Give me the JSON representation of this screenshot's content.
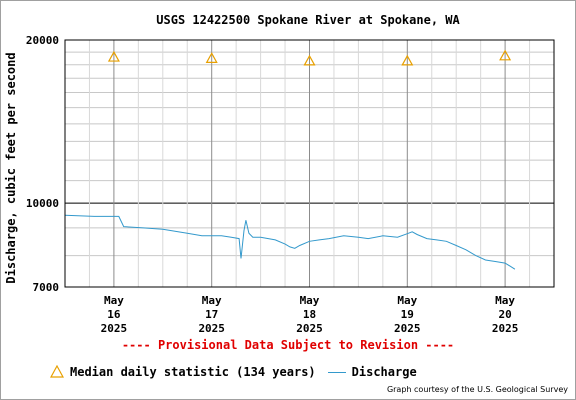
{
  "chart_data": {
    "type": "line",
    "title": "USGS 12422500 Spokane River at Spokane, WA",
    "ylabel": "Discharge, cubic feet per second",
    "y_scale": "log",
    "ylim": [
      7000,
      20000
    ],
    "y_ticks": [
      {
        "value": 7000,
        "label": "7000"
      },
      {
        "value": 10000,
        "label": "10000"
      },
      {
        "value": 20000,
        "label": "20000"
      }
    ],
    "x_ticks": [
      {
        "day": 16,
        "month": "May",
        "d": "16",
        "year": "2025"
      },
      {
        "day": 17,
        "month": "May",
        "d": "17",
        "year": "2025"
      },
      {
        "day": 18,
        "month": "May",
        "d": "18",
        "year": "2025"
      },
      {
        "day": 19,
        "month": "May",
        "d": "19",
        "year": "2025"
      },
      {
        "day": 20,
        "month": "May",
        "d": "20",
        "year": "2025"
      }
    ],
    "xlim": [
      15.5,
      20.5
    ],
    "grid": true,
    "series": [
      {
        "name": "Median daily statistic (134 years)",
        "marker": "triangle",
        "color": "#e8a000",
        "x": [
          16,
          17,
          18,
          19,
          20
        ],
        "y": [
          18600,
          18500,
          18300,
          18300,
          18700
        ]
      },
      {
        "name": "Discharge",
        "marker": "line",
        "color": "#3399cc",
        "x": [
          15.5,
          15.8,
          16.05,
          16.1,
          16.3,
          16.5,
          16.75,
          16.9,
          17.1,
          17.2,
          17.28,
          17.3,
          17.33,
          17.35,
          17.38,
          17.42,
          17.5,
          17.65,
          17.75,
          17.8,
          17.85,
          17.9,
          18.0,
          18.1,
          18.2,
          18.35,
          18.5,
          18.6,
          18.75,
          18.9,
          19.0,
          19.05,
          19.1,
          19.2,
          19.3,
          19.4,
          19.5,
          19.6,
          19.7,
          19.8,
          19.9,
          20.0,
          20.05,
          20.1
        ],
        "y": [
          9500,
          9450,
          9450,
          9050,
          9000,
          8950,
          8800,
          8700,
          8700,
          8650,
          8600,
          7900,
          8900,
          9300,
          8800,
          8650,
          8650,
          8550,
          8400,
          8300,
          8250,
          8350,
          8500,
          8550,
          8600,
          8700,
          8650,
          8600,
          8700,
          8650,
          8780,
          8850,
          8750,
          8600,
          8550,
          8500,
          8350,
          8200,
          8000,
          7850,
          7800,
          7750,
          7650,
          7550
        ]
      }
    ]
  },
  "notice": "---- Provisional Data Subject to Revision ----",
  "credit": "Graph courtesy of the U.S. Geological Survey"
}
